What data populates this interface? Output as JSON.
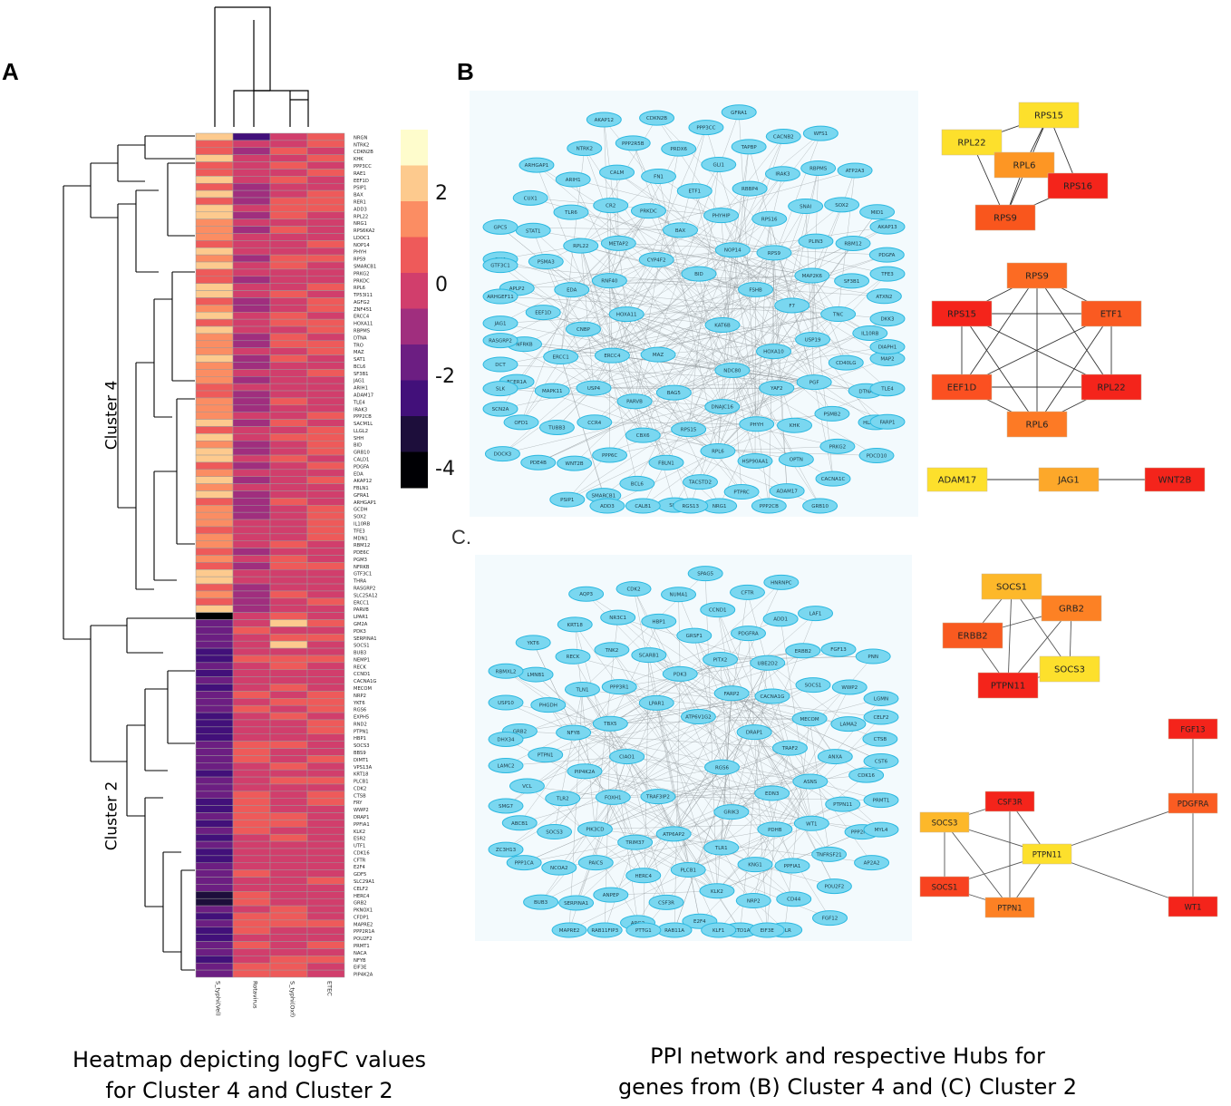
{
  "panels": {
    "a": "A",
    "b": "B",
    "c": "C."
  },
  "heatmap": {
    "columns": [
      "S_typhi(Vel)",
      "Rotavirus",
      "S_typhi(Oxf)",
      "ETEC"
    ],
    "clusters": [
      "Cluster 4",
      "Cluster 2"
    ],
    "legend_ticks": [
      "2",
      "0",
      "-2",
      "-4"
    ],
    "legend_colors": [
      "#fefccc",
      "#fdca8e",
      "#fb8d63",
      "#ee5a5a",
      "#d13e6c",
      "#a02e7e",
      "#6c1e82",
      "#42107a",
      "#1d0e3b",
      "#000004"
    ],
    "cluster4_genes": [
      "NRGN",
      "NTRK2",
      "CDKN2B",
      "KHK",
      "PPP3CC",
      "RAE1",
      "EEF1D",
      "PSIP1",
      "BAX",
      "RER1",
      "ADD3",
      "RPL22",
      "NRG1",
      "RPS6KA2",
      "LDOC1",
      "NOP14",
      "PHYH",
      "RPS9",
      "SMARCB1",
      "PRKG2",
      "PRKDC",
      "RPL6",
      "TP53I11",
      "AGFG2",
      "ZNF451",
      "ERCC4",
      "HOXA11",
      "RBPMS",
      "DTNA",
      "TRO",
      "MAZ",
      "SAT1",
      "BCL6",
      "SF3B1",
      "JAG1",
      "ARIH1",
      "ADAM17",
      "TLE4",
      "IRAK3",
      "PPP2CB",
      "SACM1L",
      "LLGL2",
      "SHH",
      "BID",
      "GRB10",
      "CALD1",
      "PDGFA",
      "EDA",
      "AKAP12",
      "FBLN1",
      "GFRA1",
      "ARHGAP1",
      "GCDH",
      "SOX2",
      "IL10RB",
      "TFE3",
      "MDN1",
      "RBM12",
      "PDE6C",
      "PGM3",
      "NFRKB",
      "GTF3C1",
      "THRA",
      "RASGRP2",
      "SLC25A12",
      "ERCC1",
      "PARVB"
    ],
    "cluster2_genes": [
      "LPAR1",
      "GM2A",
      "PDK3",
      "SERPINA1",
      "SOCS1",
      "BUB3",
      "NEMP1",
      "RECK",
      "CCND1",
      "CACNA1G",
      "MECOM",
      "NRP2",
      "YKT6",
      "RGS6",
      "EXPH5",
      "RND2",
      "PTPN1",
      "HBP1",
      "SOCS3",
      "BBS9",
      "DIMT1",
      "VPS13A",
      "KRT18",
      "PLCB1",
      "CDK2",
      "CTSB",
      "FRY",
      "WWP2",
      "DRAP1",
      "PPFIA1",
      "KLK2",
      "ESR2",
      "UTF1",
      "CDK16",
      "CFTR",
      "E2F4",
      "GDF5",
      "SLC29A1",
      "CELF2",
      "HERC4",
      "GRB2",
      "PKNOX1",
      "CFDP1",
      "MAPRE2",
      "PPP2R1A",
      "POU2F2",
      "PRMT1",
      "NACA",
      "NFYB",
      "EIF3E",
      "PIP4K2A"
    ]
  },
  "network_b": {
    "nodes": [
      "KAT6B",
      "MAZ",
      "BID",
      "NDC80",
      "HOXA11",
      "FSHB",
      "BAG5",
      "CYP4F2",
      "HOXA10",
      "ERCC4",
      "NOP14",
      "DNAJC16",
      "RNF40",
      "F7",
      "PARVB",
      "BAX",
      "YAF2",
      "CNBP",
      "RPS9",
      "RPS15",
      "METAP2",
      "USP19",
      "USP4",
      "PHYHIP",
      "PHYH",
      "EDA",
      "MAP2K6",
      "CBX6",
      "PRKDC",
      "PGF",
      "ERCC1",
      "RPS16",
      "RPL6",
      "RPL22",
      "TNC",
      "CCR4",
      "ETF1",
      "KHK",
      "EEF1D",
      "PLIN3",
      "FBLN1",
      "CR2",
      "CD40LG",
      "MAPK11",
      "RBBP4",
      "HSP90AA1",
      "PSMA3",
      "SF3B1",
      "PPP6C",
      "FN1",
      "PSMB2",
      "NFRKB",
      "SNAI",
      "TACSTD2",
      "TLR6",
      "IL10RB",
      "TUBB3",
      "GLI1",
      "OPTN",
      "APLP2",
      "RBM12",
      "BCL6",
      "CALM",
      "DTNA",
      "FCER1A",
      "IRAK3",
      "PTPRC",
      "STAT1",
      "ATXN2",
      "WNT2B",
      "PRDX6",
      "PRKG2",
      "JAG1",
      "SOX2",
      "SHH",
      "ARIH1",
      "MAP2",
      "OFD1",
      "TAPBP",
      "ADAM17",
      "GJA1",
      "PDGFA",
      "SMARCB1",
      "PPP2R5B",
      "HLA-DPB1",
      "DCT",
      "RBPMS",
      "NRG1",
      "CUX1",
      "DKK3",
      "PDE4B",
      "PPP3CC",
      "CACNA1C",
      "ARHGEF11",
      "MID1",
      "CALB1",
      "NTRK2",
      "TLE4",
      "SCN2A",
      "CACNB2",
      "PPP2CB",
      "GPC5",
      "TFE3",
      "PSIP1",
      "CDKN2B",
      "PDCD10",
      "RASGRP2",
      "ATP2A3",
      "RGS13",
      "ARHGAP1",
      "DIAPH1",
      "DOCK3",
      "GFRA1",
      "GRB10",
      "GTF3C1",
      "AKAP13",
      "ADD3",
      "AKAP12",
      "FARP1",
      "SLK",
      "WFS1"
    ]
  },
  "network_c": {
    "nodes": [
      "RGS6",
      "TRAF3IP2",
      "ATP6V1G2",
      "GRIK3",
      "CIAO1",
      "DRAP1",
      "ATP6AP2",
      "LPAR1",
      "EDN3",
      "FOXH1",
      "FARP2",
      "TLR1",
      "TBX5",
      "TRAF2",
      "TRIM37",
      "PDK3",
      "PDHB",
      "PIP4K2A",
      "CACNA1G",
      "PLCB1",
      "PPP3R1",
      "ASNS",
      "PIK3CD",
      "PITX2",
      "KNG1",
      "NFYB",
      "MECOM",
      "HERC4",
      "SCARB1",
      "WT1",
      "TLR2",
      "UBE2D2",
      "KLK2",
      "TLN1",
      "ANXA",
      "PAICS",
      "GRSF1",
      "PPFIA1",
      "PTPN1",
      "SOCS1",
      "CSF3R",
      "TNK2",
      "PTPN11",
      "SOCS3",
      "PDGFRA",
      "NRP2",
      "PHGDH",
      "LAMA2",
      "ANPEP",
      "HBP1",
      "TNFRSF21",
      "VCL",
      "ERBB2",
      "E2F4",
      "RECK",
      "CDK16",
      "NCOA2",
      "CCND1",
      "CD44",
      "GRB2",
      "WWP2",
      "ARG2",
      "NR3C1",
      "PPP2R1A",
      "ABCB1",
      "ADD1",
      "SETD1A",
      "LMNB1",
      "CTSB",
      "SERPINA1",
      "NUMA1",
      "POU2F2",
      "LAMC2",
      "FGF13",
      "RAB11A",
      "KRT18",
      "PRMT1",
      "PPP1CA",
      "CFTR",
      "LDLR",
      "USP10",
      "LGMN",
      "RAB11FIP3",
      "CDK2",
      "AP2A2",
      "SMG7",
      "LAF1",
      "KLF1",
      "YKT6",
      "CST6",
      "BUB3",
      "SPAG5",
      "FGF12",
      "DHX34",
      "PNN",
      "PTTG1",
      "AQP3",
      "MYL4",
      "ZC3H13",
      "HNRNPC",
      "EIF3E",
      "RBMXL2",
      "CELF2",
      "MAPRE2"
    ]
  },
  "hubs": {
    "b1": {
      "nodes": [
        {
          "id": "RPS15",
          "color": "#fde02c"
        },
        {
          "id": "RPL22",
          "color": "#fde02c"
        },
        {
          "id": "RPL6",
          "color": "#fd9624"
        },
        {
          "id": "RPS16",
          "color": "#f4241b"
        },
        {
          "id": "RPS9",
          "color": "#f9561d"
        }
      ],
      "edges": [
        [
          "RPS15",
          "RPL22"
        ],
        [
          "RPS15",
          "RPS16"
        ],
        [
          "RPS15",
          "RPS9"
        ],
        [
          "RPS15",
          "RPL6"
        ],
        [
          "RPL22",
          "RPL6"
        ],
        [
          "RPL22",
          "RPS9"
        ],
        [
          "RPL6",
          "RPS16"
        ],
        [
          "RPL6",
          "RPS9"
        ],
        [
          "RPS16",
          "RPS9"
        ]
      ]
    },
    "b2": {
      "nodes": [
        {
          "id": "RPS9",
          "color": "#fc6b23"
        },
        {
          "id": "RPS15",
          "color": "#f4241b"
        },
        {
          "id": "ETF1",
          "color": "#fa5a21"
        },
        {
          "id": "EEF1D",
          "color": "#fb5021"
        },
        {
          "id": "RPL22",
          "color": "#f4241b"
        },
        {
          "id": "RPL6",
          "color": "#fd7a25"
        }
      ],
      "edges": [
        [
          "RPS9",
          "RPS15"
        ],
        [
          "RPS9",
          "ETF1"
        ],
        [
          "RPS9",
          "EEF1D"
        ],
        [
          "RPS9",
          "RPL22"
        ],
        [
          "RPS9",
          "RPL6"
        ],
        [
          "RPS15",
          "ETF1"
        ],
        [
          "RPS15",
          "EEF1D"
        ],
        [
          "RPS15",
          "RPL22"
        ],
        [
          "RPS15",
          "RPL6"
        ],
        [
          "ETF1",
          "EEF1D"
        ],
        [
          "ETF1",
          "RPL22"
        ],
        [
          "ETF1",
          "RPL6"
        ],
        [
          "EEF1D",
          "RPL22"
        ],
        [
          "EEF1D",
          "RPL6"
        ],
        [
          "RPL22",
          "RPL6"
        ]
      ]
    },
    "b3": {
      "nodes": [
        {
          "id": "ADAM17",
          "color": "#fde02c"
        },
        {
          "id": "JAG1",
          "color": "#fda82a"
        },
        {
          "id": "WNT2B",
          "color": "#f4241b"
        }
      ],
      "edges": [
        [
          "ADAM17",
          "JAG1"
        ],
        [
          "JAG1",
          "WNT2B"
        ]
      ]
    },
    "c1": {
      "nodes": [
        {
          "id": "SOCS1",
          "color": "#fdb82a"
        },
        {
          "id": "GRB2",
          "color": "#fd8124"
        },
        {
          "id": "ERBB2",
          "color": "#f95a20"
        },
        {
          "id": "SOCS3",
          "color": "#fde02c"
        },
        {
          "id": "PTPN11",
          "color": "#f4241b"
        }
      ],
      "edges": [
        [
          "SOCS1",
          "GRB2"
        ],
        [
          "SOCS1",
          "ERBB2"
        ],
        [
          "SOCS1",
          "PTPN11"
        ],
        [
          "SOCS1",
          "SOCS3"
        ],
        [
          "GRB2",
          "ERBB2"
        ],
        [
          "GRB2",
          "PTPN11"
        ],
        [
          "GRB2",
          "SOCS3"
        ],
        [
          "ERBB2",
          "PTPN11"
        ],
        [
          "PTPN11",
          "SOCS3"
        ]
      ]
    },
    "c2": {
      "nodes": [
        {
          "id": "FGF13",
          "color": "#f4241b"
        },
        {
          "id": "CSF3R",
          "color": "#f4241b"
        },
        {
          "id": "PDGFRA",
          "color": "#fb5c22"
        },
        {
          "id": "SOCS3",
          "color": "#fdb82a"
        },
        {
          "id": "PTPN11",
          "color": "#fde02c"
        },
        {
          "id": "SOCS1",
          "color": "#f84320"
        },
        {
          "id": "PTPN1",
          "color": "#fd8124"
        },
        {
          "id": "WT1",
          "color": "#f4241b"
        }
      ],
      "edges": [
        [
          "FGF13",
          "PDGFRA"
        ],
        [
          "PDGFRA",
          "PTPN11"
        ],
        [
          "PDGFRA",
          "WT1"
        ],
        [
          "PTPN11",
          "WT1"
        ],
        [
          "CSF3R",
          "SOCS3"
        ],
        [
          "CSF3R",
          "PTPN11"
        ],
        [
          "CSF3R",
          "PTPN1"
        ],
        [
          "SOCS3",
          "SOCS1"
        ],
        [
          "SOCS3",
          "PTPN11"
        ],
        [
          "SOCS3",
          "PTPN1"
        ],
        [
          "SOCS1",
          "PTPN11"
        ],
        [
          "SOCS1",
          "PTPN1"
        ],
        [
          "PTPN11",
          "PTPN1"
        ]
      ]
    }
  },
  "captions": {
    "left_line1": "Heatmap depicting logFC values",
    "left_line2": "for Cluster 4 and Cluster 2",
    "right_line1": "PPI network and respective Hubs for",
    "right_line2": "genes from (B) Cluster 4 and (C) Cluster 2"
  }
}
